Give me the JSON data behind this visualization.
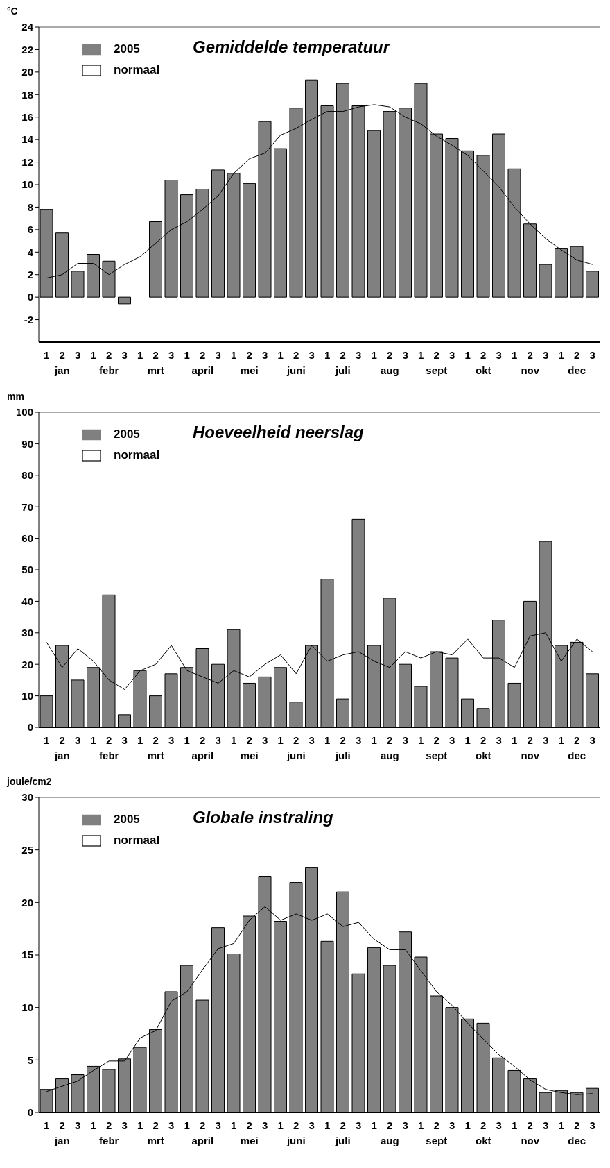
{
  "chart_data": [
    {
      "type": "bar",
      "title": "Gemiddelde temperatuur",
      "ylabel": "°C",
      "categories": [
        "1",
        "2",
        "3",
        "1",
        "2",
        "3",
        "1",
        "2",
        "3",
        "1",
        "2",
        "3",
        "1",
        "2",
        "3",
        "1",
        "2",
        "3",
        "1",
        "2",
        "3",
        "1",
        "2",
        "3",
        "1",
        "2",
        "3",
        "1",
        "2",
        "3",
        "1",
        "2",
        "3",
        "1",
        "2",
        "3"
      ],
      "annotations": [
        "jan",
        "febr",
        "mrt",
        "april",
        "mei",
        "juni",
        "juli",
        "aug",
        "sept",
        "okt",
        "nov",
        "dec"
      ],
      "series": [
        {
          "name": "2005",
          "color": "#808080",
          "values": [
            7.8,
            5.7,
            2.3,
            3.8,
            3.2,
            -0.6,
            0,
            6.7,
            10.4,
            9.1,
            9.6,
            11.3,
            11.0,
            10.1,
            15.6,
            13.2,
            16.8,
            19.3,
            17.0,
            19.0,
            17.0,
            14.8,
            16.5,
            16.8,
            19.0,
            14.5,
            14.1,
            13.0,
            12.6,
            14.5,
            11.4,
            6.5,
            2.9,
            4.3,
            4.5,
            2.3
          ]
        },
        {
          "name": "normaal",
          "type": "line",
          "color": "#000000",
          "values": [
            1.7,
            2.0,
            3.0,
            3.0,
            2.0,
            2.9,
            3.6,
            4.8,
            6.0,
            6.7,
            7.8,
            9.0,
            11.0,
            12.3,
            12.8,
            14.4,
            15.0,
            15.8,
            16.5,
            16.5,
            16.9,
            17.1,
            16.9,
            16.0,
            15.4,
            14.3,
            13.5,
            12.6,
            11.2,
            9.8,
            8.0,
            6.5,
            5.2,
            4.2,
            3.3,
            2.9
          ]
        }
      ],
      "ylim": [
        -4,
        24
      ],
      "yticks": [
        -2,
        0,
        2,
        4,
        6,
        8,
        10,
        12,
        14,
        16,
        18,
        20,
        22,
        24
      ],
      "legend": "top left"
    },
    {
      "type": "bar",
      "title": "Hoeveelheid neerslag",
      "ylabel": "mm",
      "categories": [
        "1",
        "2",
        "3",
        "1",
        "2",
        "3",
        "1",
        "2",
        "3",
        "1",
        "2",
        "3",
        "1",
        "2",
        "3",
        "1",
        "2",
        "3",
        "1",
        "2",
        "3",
        "1",
        "2",
        "3",
        "1",
        "2",
        "3",
        "1",
        "2",
        "3",
        "1",
        "2",
        "3",
        "1",
        "2",
        "3"
      ],
      "annotations": [
        "jan",
        "febr",
        "mrt",
        "april",
        "mei",
        "juni",
        "juli",
        "aug",
        "sept",
        "okt",
        "nov",
        "dec"
      ],
      "series": [
        {
          "name": "2005",
          "color": "#808080",
          "values": [
            10,
            26,
            15,
            19,
            42,
            4,
            18,
            10,
            17,
            19,
            25,
            20,
            31,
            14,
            16,
            19,
            8,
            26,
            47,
            9,
            66,
            26,
            41,
            20,
            13,
            24,
            22,
            9,
            6,
            34,
            14,
            40,
            59,
            26,
            27,
            17
          ]
        },
        {
          "name": "normaal",
          "type": "line",
          "color": "#000000",
          "values": [
            27,
            19,
            25,
            21,
            15,
            12,
            18,
            20,
            26,
            18,
            16,
            14,
            18,
            16,
            20,
            23,
            17,
            26,
            21,
            23,
            24,
            21,
            19,
            24,
            22,
            24,
            23,
            28,
            22,
            22,
            19,
            29,
            30,
            21,
            28,
            24
          ]
        }
      ],
      "ylim": [
        0,
        100
      ],
      "yticks": [
        0,
        10,
        20,
        30,
        40,
        50,
        60,
        70,
        80,
        90,
        100
      ],
      "legend": "top left"
    },
    {
      "type": "bar",
      "title": "Globale instraling",
      "ylabel": "joule/cm2",
      "categories": [
        "1",
        "2",
        "3",
        "1",
        "2",
        "3",
        "1",
        "2",
        "3",
        "1",
        "2",
        "3",
        "1",
        "2",
        "3",
        "1",
        "2",
        "3",
        "1",
        "2",
        "3",
        "1",
        "2",
        "3",
        "1",
        "2",
        "3",
        "1",
        "2",
        "3",
        "1",
        "2",
        "3",
        "1",
        "2",
        "3"
      ],
      "annotations": [
        "jan",
        "febr",
        "mrt",
        "april",
        "mei",
        "juni",
        "juli",
        "aug",
        "sept",
        "okt",
        "nov",
        "dec"
      ],
      "series": [
        {
          "name": "2005",
          "color": "#808080",
          "values": [
            2.2,
            3.2,
            3.6,
            4.4,
            4.1,
            5.1,
            6.2,
            7.9,
            11.5,
            14.0,
            10.7,
            17.6,
            15.1,
            18.7,
            22.5,
            18.2,
            21.9,
            23.3,
            16.3,
            21.0,
            13.2,
            15.7,
            14.0,
            17.2,
            14.8,
            11.1,
            10.0,
            8.9,
            8.5,
            5.2,
            4.0,
            3.2,
            1.9,
            2.1,
            1.9,
            2.3
          ]
        },
        {
          "name": "normaal",
          "type": "line",
          "color": "#000000",
          "values": [
            2.0,
            2.5,
            3.0,
            4.0,
            4.9,
            4.9,
            7.1,
            7.8,
            10.6,
            11.5,
            13.6,
            15.6,
            16.1,
            18.3,
            19.6,
            18.3,
            18.9,
            18.3,
            18.9,
            17.7,
            18.1,
            16.5,
            15.5,
            15.5,
            13.5,
            11.5,
            10.2,
            8.5,
            7.0,
            5.5,
            4.4,
            3.1,
            2.2,
            1.9,
            1.7,
            1.8
          ]
        }
      ],
      "ylim": [
        0,
        30
      ],
      "yticks": [
        0,
        5,
        10,
        15,
        20,
        25,
        30
      ],
      "legend": "top left"
    }
  ]
}
